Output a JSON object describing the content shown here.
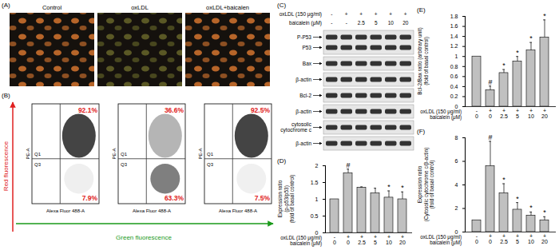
{
  "figure": {
    "A": {
      "panel": "(A)",
      "images": [
        {
          "title": "Control",
          "color": "#e07a30"
        },
        {
          "title": "oxLDL",
          "color": "#6b6a2a"
        },
        {
          "title": "oxLDL+baicalen",
          "color": "#e07a30"
        }
      ]
    },
    "B": {
      "panel": "(B)",
      "y_label": "Red fluorescence",
      "x_label": "Green fluorescence",
      "plot_y_label": "PE-A",
      "plot_x_label": "Alexa Fluor 488-A",
      "quadrant_labels": [
        "Q1",
        "Q3"
      ],
      "plots": [
        {
          "upper": "92.1%",
          "lower": "7.9%"
        },
        {
          "upper": "36.6%",
          "lower": "63.3%"
        },
        {
          "upper": "92.5%",
          "lower": "7.5%"
        }
      ]
    },
    "C": {
      "panel": "(C)",
      "header": [
        {
          "label": "oxLDL (150 μg/ml)",
          "lanes": [
            "-",
            "+",
            "+",
            "+",
            "+",
            "+"
          ]
        },
        {
          "label": "baicalein (μM)",
          "lanes": [
            "-",
            "-",
            "2.5",
            "5",
            "10",
            "20"
          ]
        }
      ],
      "blots": [
        {
          "rows": [
            "P-P53",
            "P53"
          ]
        },
        {
          "rows": [
            "Bax"
          ]
        },
        {
          "rows": [
            "β-actin"
          ]
        },
        {
          "rows": [
            "Bcl-2"
          ]
        },
        {
          "rows": [
            "β-actin"
          ]
        },
        {
          "rows": [
            "cytosolic\ncytochrome c"
          ]
        },
        {
          "rows": [
            "β-actin"
          ]
        }
      ]
    }
  },
  "chart_data": [
    {
      "type": "bar",
      "panel": "(D)",
      "y_label": "Expression ratio\n(p-p53/p53)\n(fold of basal control)",
      "x_row_labels": [
        "oxLDL (150 μg/ml)",
        "baicalein (μM)"
      ],
      "oxldl": [
        "-",
        "+",
        "+",
        "+",
        "+",
        "+"
      ],
      "categories": [
        "0",
        "0",
        "2.5",
        "5",
        "10",
        "20"
      ],
      "values": [
        1,
        1.78,
        1.35,
        1.18,
        1.05,
        1.0
      ],
      "errors": [
        0,
        0.12,
        0.02,
        0.15,
        0.2,
        0.22
      ],
      "annotations": [
        null,
        "#",
        null,
        null,
        "*",
        "*"
      ],
      "color": "#c0c0c0",
      "ylim": [
        0,
        2
      ],
      "yticks": [
        0,
        0.5,
        1,
        1.5,
        2
      ]
    },
    {
      "type": "bar",
      "panel": "(E)",
      "y_label": "Bcl-2/Bax ratio (arbitrary unit)\n(fold of basal control)",
      "x_row_labels": [
        "oxLDL (150 μg/ml)",
        "baicalein (μM)"
      ],
      "oxldl": [
        "-",
        "+",
        "+",
        "+",
        "+",
        "+"
      ],
      "categories": [
        "0",
        "0",
        "2.5",
        "5",
        "10",
        "20"
      ],
      "values": [
        1,
        0.33,
        0.67,
        0.9,
        1.12,
        1.38
      ],
      "errors": [
        0,
        0.08,
        0.07,
        0.1,
        0.16,
        0.35
      ],
      "annotations": [
        null,
        "#",
        "*",
        "*",
        "*",
        "*"
      ],
      "color": "#c0c0c0",
      "ylim": [
        0,
        1.8
      ],
      "yticks": [
        0,
        0.2,
        0.4,
        0.6,
        0.8,
        1,
        1.2,
        1.4,
        1.6,
        1.8
      ]
    },
    {
      "type": "bar",
      "panel": "(F)",
      "y_label": "Expression ratio\n(Cytosolic cytochrome c/β-actin)\n(fold of basal control)",
      "x_row_labels": [
        "oxLDL (150 μg/ml)",
        "baicalein (μM)"
      ],
      "oxldl": [
        "-",
        "+",
        "+",
        "+",
        "+",
        "+"
      ],
      "categories": [
        "0",
        "0",
        "2.5",
        "5",
        "10",
        "20"
      ],
      "values": [
        1,
        5.6,
        3.3,
        1.9,
        1.4,
        1.0
      ],
      "errors": [
        0,
        2.1,
        0.8,
        0.6,
        0.3,
        0.3
      ],
      "annotations": [
        null,
        "#",
        "*",
        "*",
        "*",
        "*"
      ],
      "color": "#c0c0c0",
      "ylim": [
        0,
        8
      ],
      "yticks": [
        0,
        2,
        4,
        6,
        8
      ]
    }
  ]
}
